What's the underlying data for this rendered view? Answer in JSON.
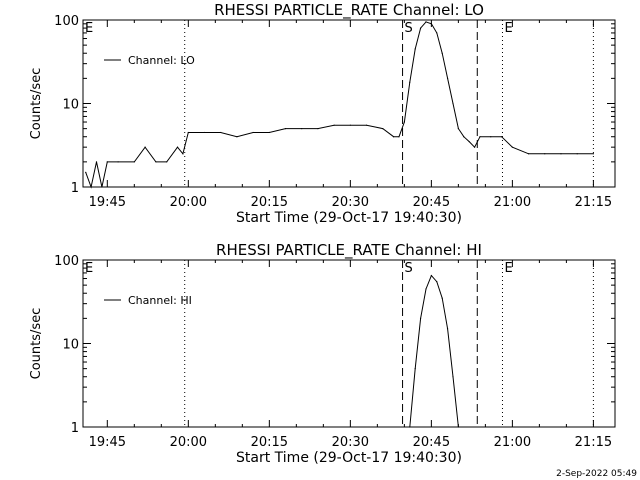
{
  "footer": {
    "date_stamp": "2-Sep-2022 05:49"
  },
  "chart_data": [
    {
      "type": "line",
      "title": "RHESSI PARTICLE_RATE Channel: LO",
      "xlabel": "Start Time (29-Oct-17 19:40:30)",
      "ylabel": "Counts/sec",
      "y_scale": "log",
      "ylim": [
        1,
        100
      ],
      "xlim": [
        "19:40:30",
        "21:19"
      ],
      "x_tick_labels": [
        "19:45",
        "20:00",
        "20:15",
        "20:30",
        "20:45",
        "21:00",
        "21:15"
      ],
      "y_tick_labels": [
        "1",
        "10",
        "100"
      ],
      "legend": {
        "position": "top-left",
        "entries": [
          "Channel: LO"
        ]
      },
      "markers": [
        {
          "label": "E",
          "time": "19:40:30",
          "style": "dotted"
        },
        {
          "label": "",
          "time": "19:59:20",
          "style": "dotted"
        },
        {
          "label": "S",
          "time": "20:39:40",
          "style": "dashed"
        },
        {
          "label": "",
          "time": "20:53:30",
          "style": "dashed"
        },
        {
          "label": "E",
          "time": "20:58:10",
          "style": "dotted"
        },
        {
          "label": "",
          "time": "21:15:00",
          "style": "dotted"
        }
      ],
      "series": [
        {
          "name": "Channel: LO",
          "x": [
            "19:41:00",
            "19:42:00",
            "19:43:00",
            "19:44:00",
            "19:45:00",
            "19:47:00",
            "19:50:00",
            "19:52:00",
            "19:54:00",
            "19:56:00",
            "19:58:00",
            "19:59:00",
            "20:00:00",
            "20:03:00",
            "20:06:00",
            "20:09:00",
            "20:12:00",
            "20:15:00",
            "20:18:00",
            "20:21:00",
            "20:24:00",
            "20:27:00",
            "20:30:00",
            "20:33:00",
            "20:36:00",
            "20:38:00",
            "20:39:00",
            "20:40:00",
            "20:41:00",
            "20:42:00",
            "20:43:00",
            "20:44:00",
            "20:45:00",
            "20:46:00",
            "20:47:00",
            "20:48:00",
            "20:49:00",
            "20:50:00",
            "20:51:00",
            "20:52:00",
            "20:53:00",
            "20:54:00",
            "20:56:00",
            "20:58:00",
            "21:00:00",
            "21:03:00",
            "21:06:00",
            "21:09:00",
            "21:12:00",
            "21:15:00"
          ],
          "y": [
            1.5,
            1,
            2,
            1,
            2,
            2,
            2,
            3,
            2,
            2,
            3,
            2.5,
            4.5,
            4.5,
            4.5,
            4,
            4.5,
            4.5,
            5,
            5,
            5,
            5.5,
            5.5,
            5.5,
            5,
            4,
            4,
            6,
            18,
            45,
            80,
            95,
            90,
            70,
            40,
            20,
            10,
            5,
            4,
            3.5,
            3,
            4,
            4,
            4,
            3,
            2.5,
            2.5,
            2.5,
            2.5,
            2.5
          ]
        }
      ]
    },
    {
      "type": "line",
      "title": "RHESSI PARTICLE_RATE Channel: HI",
      "xlabel": "Start Time (29-Oct-17 19:40:30)",
      "ylabel": "Counts/sec",
      "y_scale": "log",
      "ylim": [
        1,
        100
      ],
      "xlim": [
        "19:40:30",
        "21:19"
      ],
      "x_tick_labels": [
        "19:45",
        "20:00",
        "20:15",
        "20:30",
        "20:45",
        "21:00",
        "21:15"
      ],
      "y_tick_labels": [
        "1",
        "10",
        "100"
      ],
      "legend": {
        "position": "top-left",
        "entries": [
          "Channel: HI"
        ]
      },
      "markers": [
        {
          "label": "E",
          "time": "19:40:30",
          "style": "dotted"
        },
        {
          "label": "",
          "time": "19:59:20",
          "style": "dotted"
        },
        {
          "label": "S",
          "time": "20:39:40",
          "style": "dashed"
        },
        {
          "label": "",
          "time": "20:53:30",
          "style": "dashed"
        },
        {
          "label": "E",
          "time": "20:58:10",
          "style": "dotted"
        },
        {
          "label": "",
          "time": "21:15:00",
          "style": "dotted"
        }
      ],
      "series": [
        {
          "name": "Channel: HI",
          "x": [
            "20:41:00",
            "20:42:00",
            "20:43:00",
            "20:44:00",
            "20:45:00",
            "20:46:00",
            "20:47:00",
            "20:48:00",
            "20:49:00",
            "20:50:00"
          ],
          "y": [
            1,
            5,
            20,
            45,
            65,
            55,
            35,
            15,
            4,
            1
          ]
        }
      ]
    }
  ]
}
